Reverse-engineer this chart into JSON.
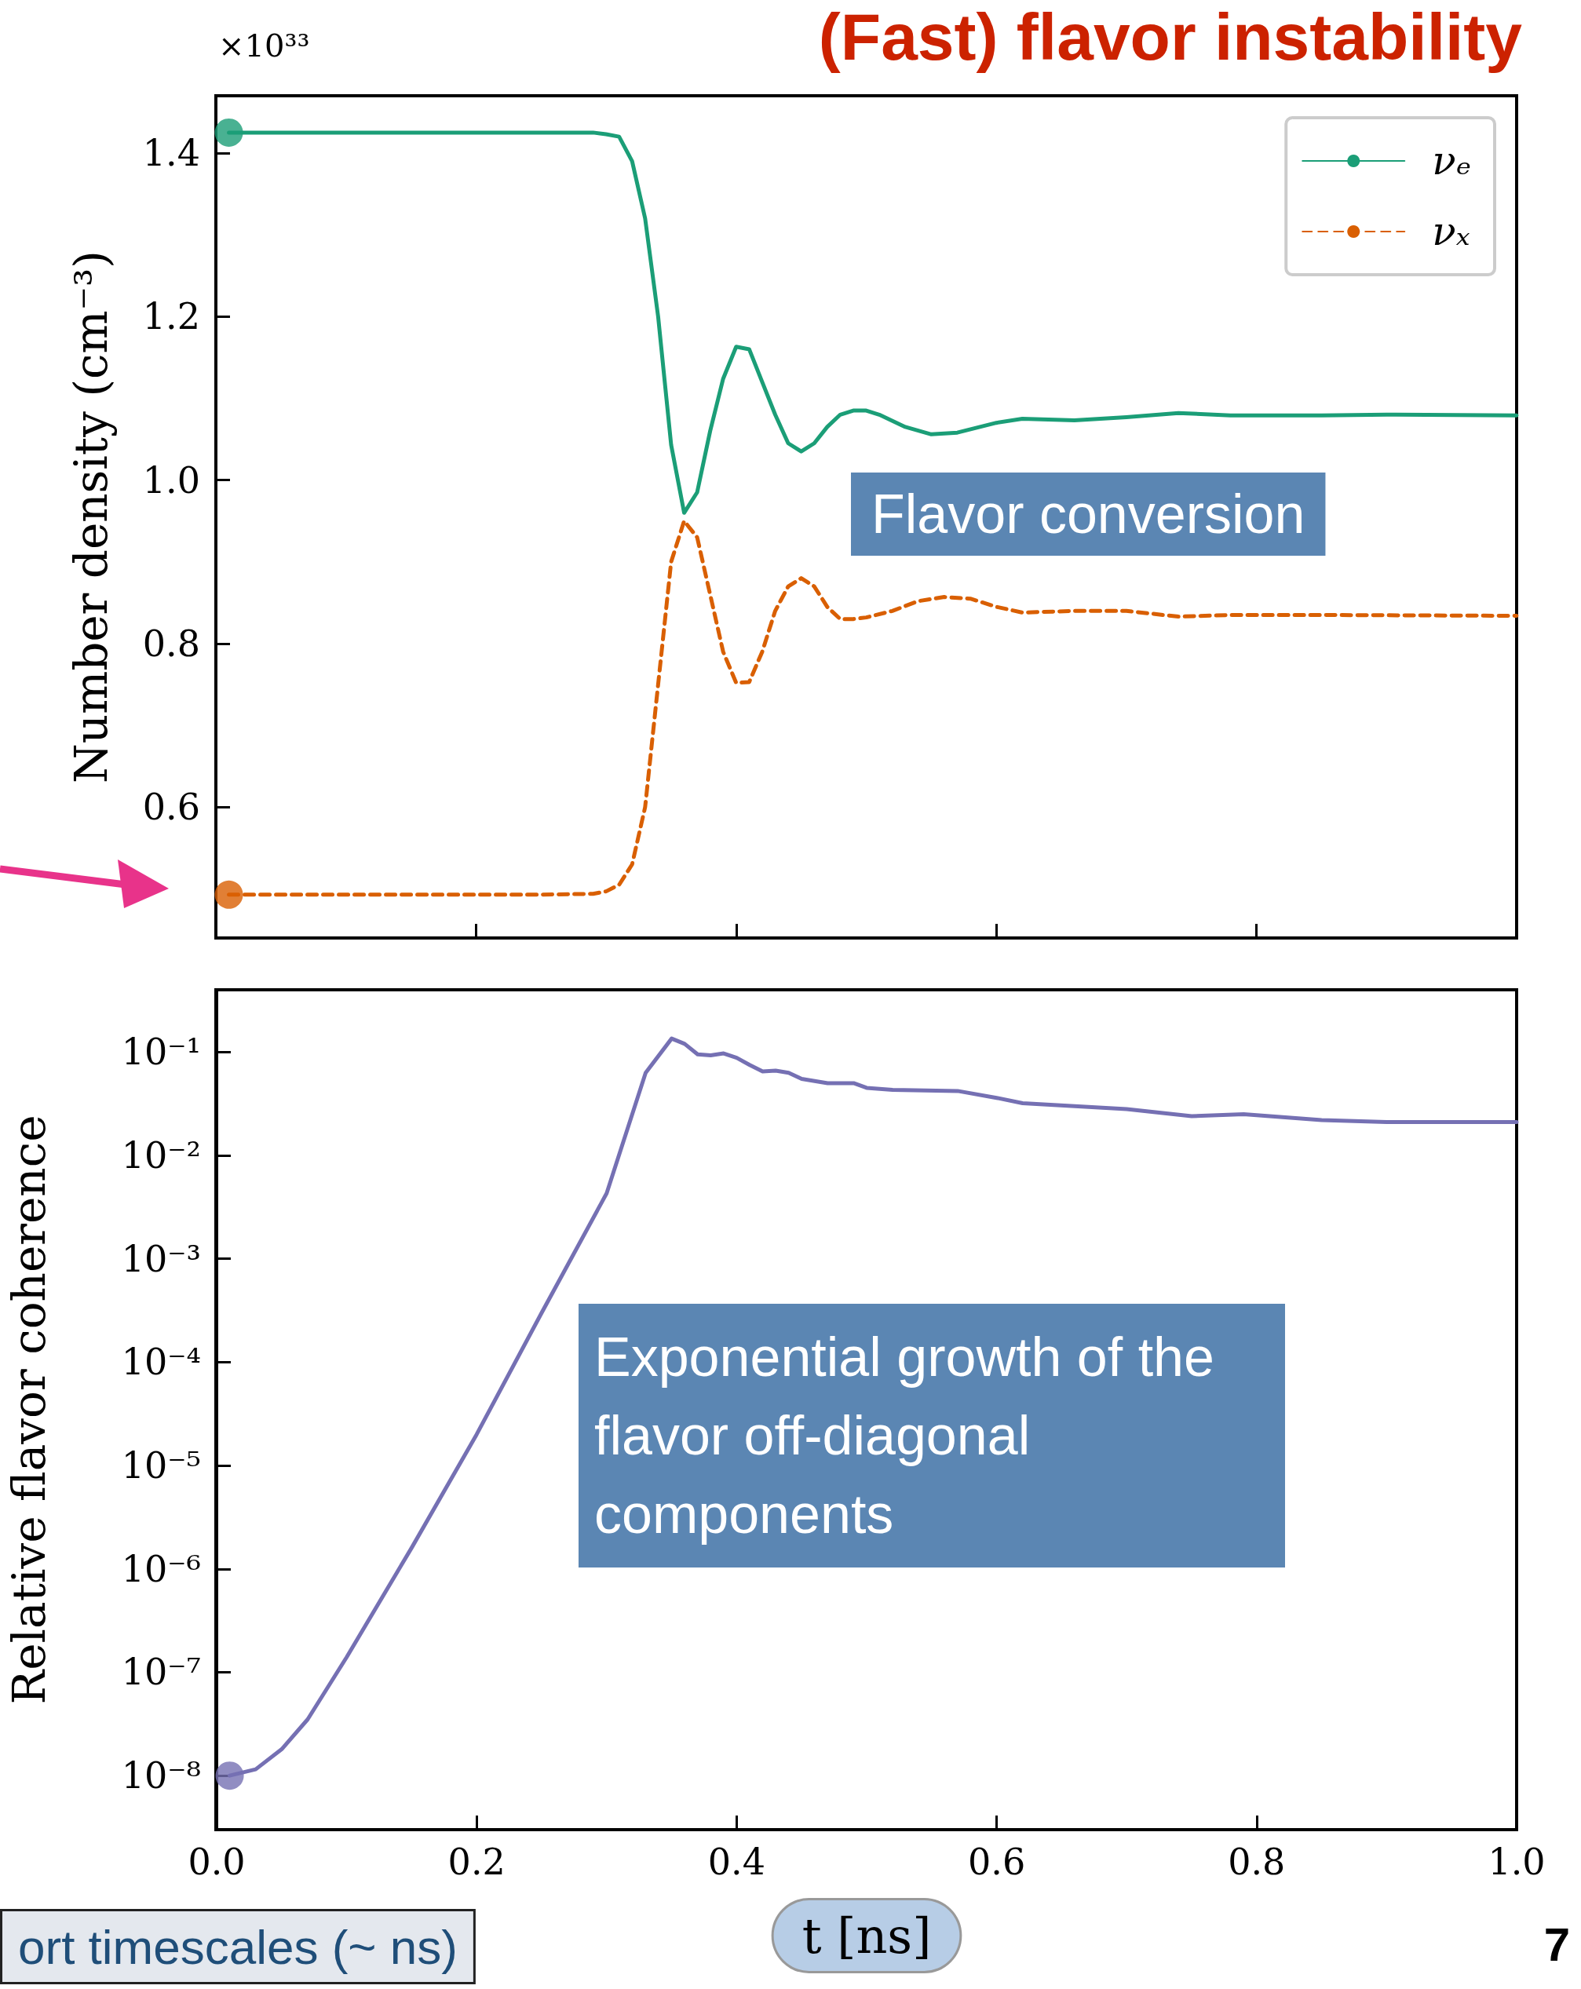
{
  "chart_data": [
    {
      "type": "line",
      "title": "(Fast) flavor instability",
      "ylabel": "Number density (cm⁻³)",
      "annotations": [
        "×10³³",
        "Flavor conversion"
      ],
      "xlim": [
        0,
        1
      ],
      "xticks": [
        {
          "value": 0.2,
          "label": null
        },
        {
          "value": 0.4,
          "label": null
        },
        {
          "value": 0.6,
          "label": null
        },
        {
          "value": 0.8,
          "label": null
        }
      ],
      "ylim": [
        0.44,
        1.47
      ],
      "yticks": [
        {
          "value": 0.6,
          "label": "0.6"
        },
        {
          "value": 0.8,
          "label": "0.8"
        },
        {
          "value": 1.0,
          "label": "1.0"
        },
        {
          "value": 1.2,
          "label": "1.2"
        },
        {
          "value": 1.4,
          "label": "1.4"
        }
      ],
      "tick_labels": "y",
      "grid": false,
      "legend": "top right",
      "marker": "none",
      "line_style": "solid",
      "series": [
        {
          "name": "νₑ",
          "color": "#1b9e77",
          "x": [
            0.01,
            0.05,
            0.1,
            0.15,
            0.2,
            0.25,
            0.29,
            0.3,
            0.31,
            0.32,
            0.33,
            0.34,
            0.35,
            0.36,
            0.37,
            0.38,
            0.39,
            0.4,
            0.41,
            0.42,
            0.43,
            0.44,
            0.45,
            0.46,
            0.47,
            0.48,
            0.49,
            0.5,
            0.51,
            0.53,
            0.55,
            0.57,
            0.6,
            0.62,
            0.66,
            0.7,
            0.74,
            0.78,
            0.85,
            0.9,
            1.0
          ],
          "values": [
            1.425,
            1.425,
            1.425,
            1.425,
            1.425,
            1.425,
            1.425,
            1.423,
            1.42,
            1.39,
            1.32,
            1.2,
            1.043,
            0.96,
            0.985,
            1.06,
            1.124,
            1.163,
            1.16,
            1.12,
            1.08,
            1.045,
            1.035,
            1.045,
            1.065,
            1.08,
            1.085,
            1.085,
            1.08,
            1.065,
            1.056,
            1.058,
            1.07,
            1.075,
            1.073,
            1.077,
            1.082,
            1.079,
            1.079,
            1.08,
            1.079
          ]
        },
        {
          "name": "νₓ",
          "color": "#d95f02",
          "line_style": "dashed",
          "x": [
            0.01,
            0.05,
            0.1,
            0.15,
            0.2,
            0.25,
            0.29,
            0.3,
            0.31,
            0.32,
            0.33,
            0.34,
            0.35,
            0.36,
            0.37,
            0.38,
            0.39,
            0.4,
            0.41,
            0.42,
            0.43,
            0.44,
            0.45,
            0.46,
            0.47,
            0.48,
            0.49,
            0.5,
            0.52,
            0.54,
            0.56,
            0.58,
            0.6,
            0.62,
            0.66,
            0.7,
            0.74,
            0.78,
            0.85,
            1.0
          ],
          "values": [
            0.493,
            0.493,
            0.493,
            0.493,
            0.493,
            0.493,
            0.494,
            0.497,
            0.505,
            0.53,
            0.6,
            0.75,
            0.9,
            0.95,
            0.93,
            0.86,
            0.79,
            0.752,
            0.753,
            0.79,
            0.84,
            0.87,
            0.88,
            0.87,
            0.845,
            0.83,
            0.83,
            0.832,
            0.84,
            0.852,
            0.857,
            0.855,
            0.845,
            0.838,
            0.84,
            0.84,
            0.833,
            0.835,
            0.835,
            0.834
          ]
        },
        {
          "type": "scatter",
          "color": "#1b9e77",
          "marker": "circle",
          "x": [
            0.01
          ],
          "values": [
            1.425
          ]
        },
        {
          "type": "scatter",
          "color": "#d95f02",
          "marker": "circle",
          "x": [
            0.01
          ],
          "values": [
            0.493
          ]
        }
      ]
    },
    {
      "type": "line",
      "xlabel": "t [ns]",
      "ylabel": "Relative flavor coherence",
      "annotations": [
        "Exponential growth of the flavor off-diagonal components",
        "ort timescales (~ ns)",
        "7"
      ],
      "log": "y",
      "xlim": [
        0,
        1
      ],
      "xticks": [
        {
          "value": 0,
          "label": "0.0"
        },
        {
          "value": 0.2,
          "label": "0.2"
        },
        {
          "value": 0.4,
          "label": "0.4"
        },
        {
          "value": 0.6,
          "label": "0.6"
        },
        {
          "value": 0.8,
          "label": "0.8"
        },
        {
          "value": 1.0,
          "label": "1.0"
        }
      ],
      "ylim": [
        3e-09,
        0.4
      ],
      "yticks": [
        {
          "value": 1e-08,
          "label": "10⁻⁸"
        },
        {
          "value": 1e-07,
          "label": "10⁻⁷"
        },
        {
          "value": 1e-06,
          "label": "10⁻⁶"
        },
        {
          "value": 1e-05,
          "label": "10⁻⁵"
        },
        {
          "value": 0.0001,
          "label": "10⁻⁴"
        },
        {
          "value": 0.001,
          "label": "10⁻³"
        },
        {
          "value": 0.01,
          "label": "10⁻²"
        },
        {
          "value": 0.1,
          "label": "10⁻¹"
        }
      ],
      "grid": false,
      "marker": "none",
      "line_style": "solid",
      "series": [
        {
          "color": "#7570b3",
          "x": [
            0.01,
            0.03,
            0.05,
            0.07,
            0.1,
            0.15,
            0.2,
            0.25,
            0.3,
            0.33,
            0.35,
            0.36,
            0.37,
            0.38,
            0.39,
            0.4,
            0.41,
            0.42,
            0.43,
            0.44,
            0.45,
            0.47,
            0.49,
            0.5,
            0.52,
            0.57,
            0.6,
            0.62,
            0.7,
            0.75,
            0.79,
            0.85,
            0.9,
            1.0
          ],
          "values": [
            1e-08,
            1.15e-08,
            1.8e-08,
            3.5e-08,
            1.4e-07,
            1.6e-06,
            2e-05,
            0.0003,
            0.0043,
            0.063,
            0.135,
            0.12,
            0.095,
            0.093,
            0.097,
            0.088,
            0.075,
            0.065,
            0.066,
            0.063,
            0.055,
            0.05,
            0.05,
            0.045,
            0.043,
            0.042,
            0.036,
            0.032,
            0.028,
            0.024,
            0.025,
            0.022,
            0.021,
            0.021
          ]
        },
        {
          "type": "scatter",
          "color": "#7570b3",
          "marker": "circle",
          "x": [
            0.01
          ],
          "values": [
            1e-08
          ]
        }
      ]
    }
  ]
}
